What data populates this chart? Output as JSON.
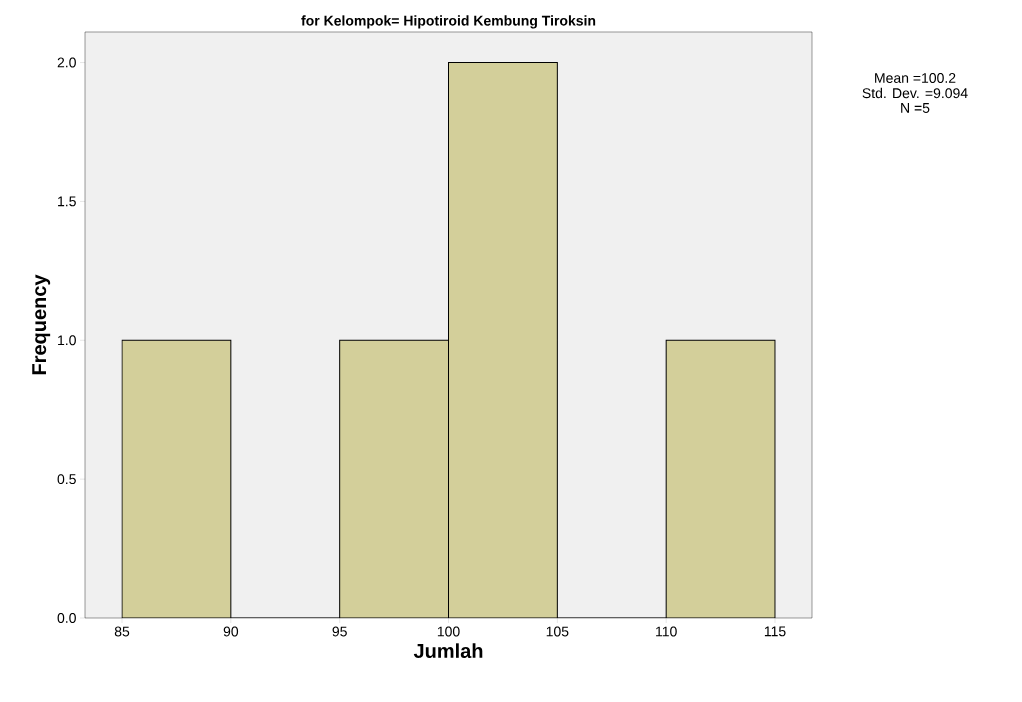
{
  "chart_data": {
    "type": "histogram",
    "title": "for Kelompok= Hipotiroid Kembung Tiroksin",
    "xlabel": "Jumlah",
    "ylabel": "Frequency",
    "bins": [
      85,
      90,
      95,
      100,
      105,
      110,
      115
    ],
    "values": [
      1,
      0,
      1,
      2,
      0,
      1
    ],
    "color": "#d3cf9a",
    "xlim": [
      83.3,
      116.7
    ],
    "ylim": [
      0,
      2.11
    ],
    "xticks": [
      85,
      90,
      95,
      100,
      105,
      110,
      115
    ],
    "yticks": [
      {
        "value": 0,
        "label": "0.0"
      },
      {
        "value": 0.5,
        "label": "0.5"
      },
      {
        "value": 1,
        "label": "1.0"
      },
      {
        "value": 1.5,
        "label": "1.5"
      },
      {
        "value": 2,
        "label": "2.0"
      }
    ],
    "annotations": [
      "Mean =100.2",
      "Std. Dev. =9.094",
      "N =5"
    ]
  }
}
